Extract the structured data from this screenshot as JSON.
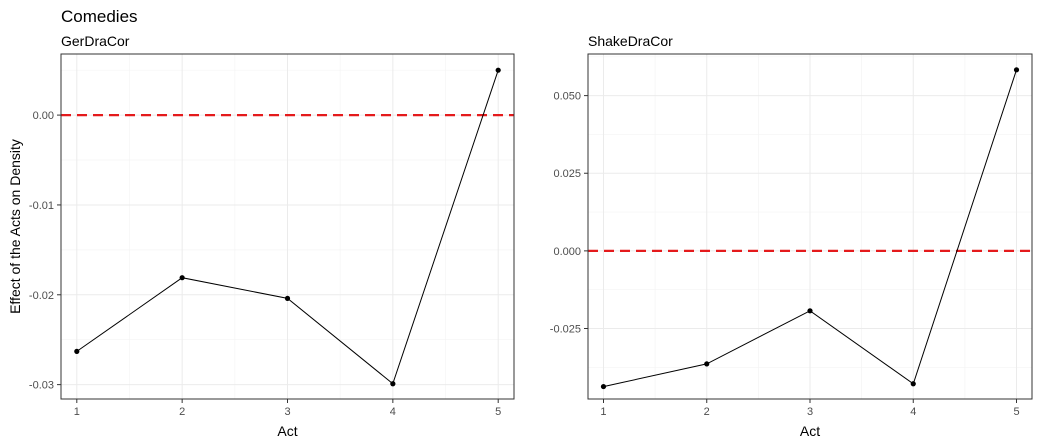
{
  "title": "Comedies",
  "colors": {
    "reference_line": "#e41a1c",
    "series": "#000000"
  },
  "chart_data": [
    {
      "type": "line",
      "title": "GerDraCor",
      "xlabel": "Act",
      "ylabel": "Effect of the Acts on Density",
      "x": [
        1,
        2,
        3,
        4,
        5
      ],
      "y": [
        -0.0263,
        -0.0181,
        -0.0204,
        -0.0299,
        0.005
      ],
      "xlim": [
        0.85,
        5.15
      ],
      "ylim": [
        -0.0316,
        0.0068
      ],
      "x_ticks": [
        1,
        2,
        3,
        4,
        5
      ],
      "x_tick_labels": [
        "1",
        "2",
        "3",
        "4",
        "5"
      ],
      "y_ticks": [
        -0.03,
        -0.02,
        -0.01,
        0.0
      ],
      "y_tick_labels": [
        "-0.03",
        "-0.02",
        "-0.01",
        "0.00"
      ],
      "reference_line": {
        "y": 0,
        "style": "dashed"
      },
      "grid": true
    },
    {
      "type": "line",
      "title": "ShakeDraCor",
      "xlabel": "Act",
      "ylabel": "",
      "x": [
        1,
        2,
        3,
        4,
        5
      ],
      "y": [
        -0.0437,
        -0.0364,
        -0.0193,
        -0.0428,
        0.0583
      ],
      "xlim": [
        0.85,
        5.15
      ],
      "ylim": [
        -0.0477,
        0.0634
      ],
      "x_ticks": [
        1,
        2,
        3,
        4,
        5
      ],
      "x_tick_labels": [
        "1",
        "2",
        "3",
        "4",
        "5"
      ],
      "y_ticks": [
        -0.025,
        0.0,
        0.025,
        0.05
      ],
      "y_tick_labels": [
        "-0.025",
        "0.000",
        "0.025",
        "0.050"
      ],
      "reference_line": {
        "y": 0,
        "style": "dashed"
      },
      "grid": true
    }
  ]
}
